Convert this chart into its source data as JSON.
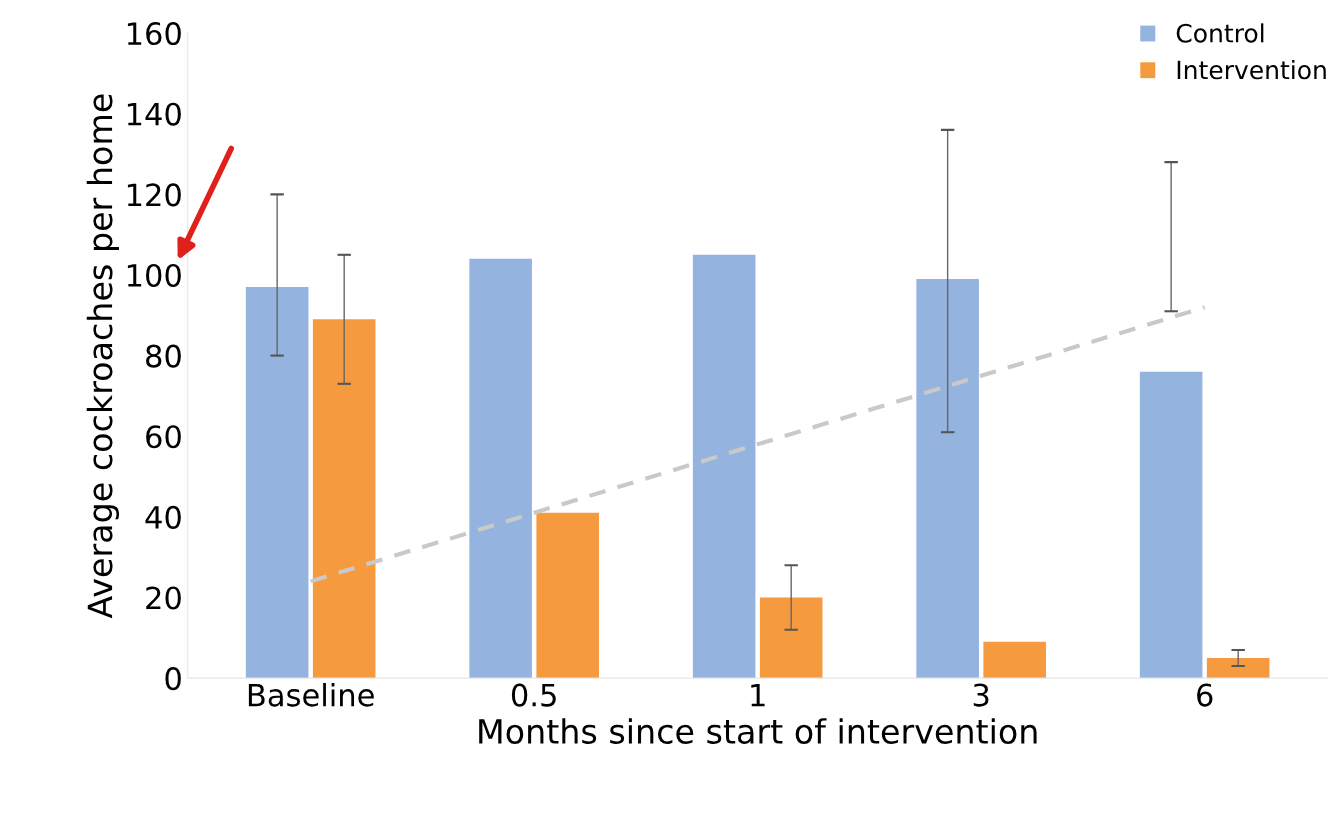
{
  "chart_data": {
    "type": "bar",
    "xlabel": "Months since start of intervention",
    "ylabel": "Average cockroaches per home",
    "categories": [
      "Baseline",
      "0.5",
      "1",
      "3",
      "6"
    ],
    "series": [
      {
        "name": "Control",
        "color": "#94b3df",
        "values": [
          97,
          104,
          105,
          99,
          76
        ],
        "errors": [
          [
            80,
            120
          ],
          null,
          null,
          [
            61,
            136
          ],
          [
            91,
            128
          ]
        ]
      },
      {
        "name": "Intervention",
        "color": "#f59a3f",
        "values": [
          89,
          41,
          20,
          9,
          5
        ],
        "errors": [
          [
            73,
            105
          ],
          null,
          [
            12,
            28
          ],
          null,
          [
            3,
            7
          ]
        ]
      },
      {
        "type": "line",
        "values": [
          24,
          41,
          58,
          75,
          92
        ],
        "color": "#c9c9c9",
        "line_style": "dashed"
      }
    ],
    "ylim": [
      0,
      160
    ],
    "yticks": [
      0,
      20,
      40,
      60,
      80,
      100,
      120,
      140,
      160
    ],
    "grid": false,
    "legend": "top right",
    "marker": "none"
  }
}
